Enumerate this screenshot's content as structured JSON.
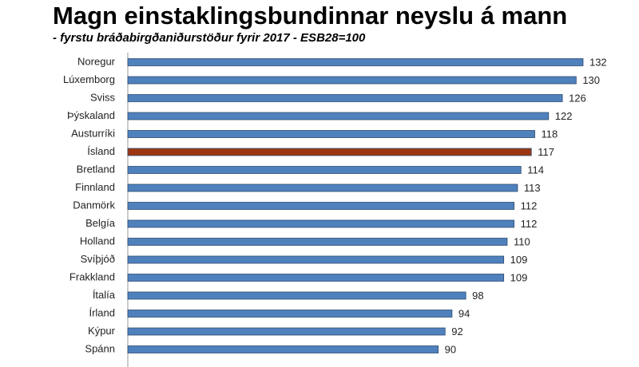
{
  "chart_data": {
    "type": "bar",
    "orientation": "horizontal",
    "title": "Magn einstaklingsbundinnar neyslu á mann",
    "subtitle": "- fyrstu bráðabirgðaniðurstöður fyrir 2017 - ESB28=100",
    "categories": [
      "Noregur",
      "Lúxemborg",
      "Sviss",
      "Þýskaland",
      "Austurríki",
      "Ísland",
      "Bretland",
      "Finnland",
      "Danmörk",
      "Belgía",
      "Holland",
      "Svíþjóð",
      "Frakkland",
      "Ítalía",
      "Írland",
      "Kýpur",
      "Spánn"
    ],
    "values": [
      132,
      130,
      126,
      122,
      118,
      117,
      114,
      113,
      112,
      112,
      110,
      109,
      109,
      98,
      94,
      92,
      90
    ],
    "colors": [
      "#4f81bd",
      "#4f81bd",
      "#4f81bd",
      "#4f81bd",
      "#4f81bd",
      "#9c3613",
      "#4f81bd",
      "#4f81bd",
      "#4f81bd",
      "#4f81bd",
      "#4f81bd",
      "#4f81bd",
      "#4f81bd",
      "#4f81bd",
      "#4f81bd",
      "#4f81bd",
      "#4f81bd"
    ]
  }
}
